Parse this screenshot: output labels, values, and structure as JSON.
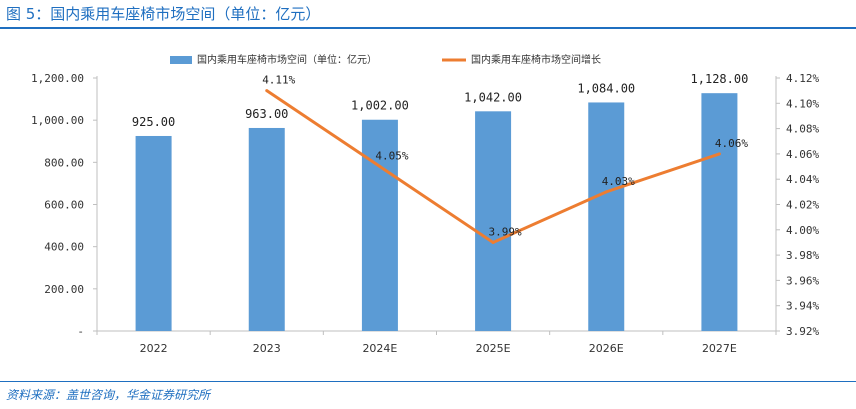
{
  "figure": {
    "title": "图 5：国内乘用车座椅市场空间（单位：亿元）",
    "source": "资料来源：盖世咨询，华金证券研究所"
  },
  "colors": {
    "bar": "#5b9bd5",
    "line": "#ed7d31",
    "accent": "#1f6fc0",
    "axis": "#bfbfbf"
  },
  "chart_data": {
    "type": "bar",
    "categories": [
      "2022",
      "2023",
      "2024E",
      "2025E",
      "2026E",
      "2027E"
    ],
    "series": [
      {
        "name": "国内乘用车座椅市场空间（单位：亿元）",
        "type": "bar",
        "axis": "left",
        "values": [
          925.0,
          963.0,
          1002.0,
          1042.0,
          1084.0,
          1128.0
        ],
        "labels": [
          "925.00",
          "963.00",
          "1,002.00",
          "1,042.00",
          "1,084.00",
          "1,128.00"
        ]
      },
      {
        "name": "国内乘用车座椅市场空间增长",
        "type": "line",
        "axis": "right",
        "values": [
          null,
          4.11,
          4.05,
          3.99,
          4.03,
          4.06
        ],
        "labels": [
          "",
          "4.11%",
          "4.05%",
          "3.99%",
          "4.03%",
          "4.06%"
        ]
      }
    ],
    "y_left": {
      "min": 0,
      "max": 1200,
      "ticks": [
        0,
        200,
        400,
        600,
        800,
        1000,
        1200
      ],
      "tick_labels": [
        "-",
        "200.00",
        "400.00",
        "600.00",
        "800.00",
        "1,000.00",
        "1,200.00"
      ]
    },
    "y_right": {
      "min": 3.92,
      "max": 4.12,
      "ticks": [
        3.92,
        3.94,
        3.96,
        3.98,
        4.0,
        4.02,
        4.04,
        4.06,
        4.08,
        4.1,
        4.12
      ],
      "tick_labels": [
        "3.92%",
        "3.94%",
        "3.96%",
        "3.98%",
        "4.00%",
        "4.02%",
        "4.04%",
        "4.06%",
        "4.08%",
        "4.10%",
        "4.12%"
      ]
    },
    "legend_position": "top-center",
    "grid": false
  }
}
